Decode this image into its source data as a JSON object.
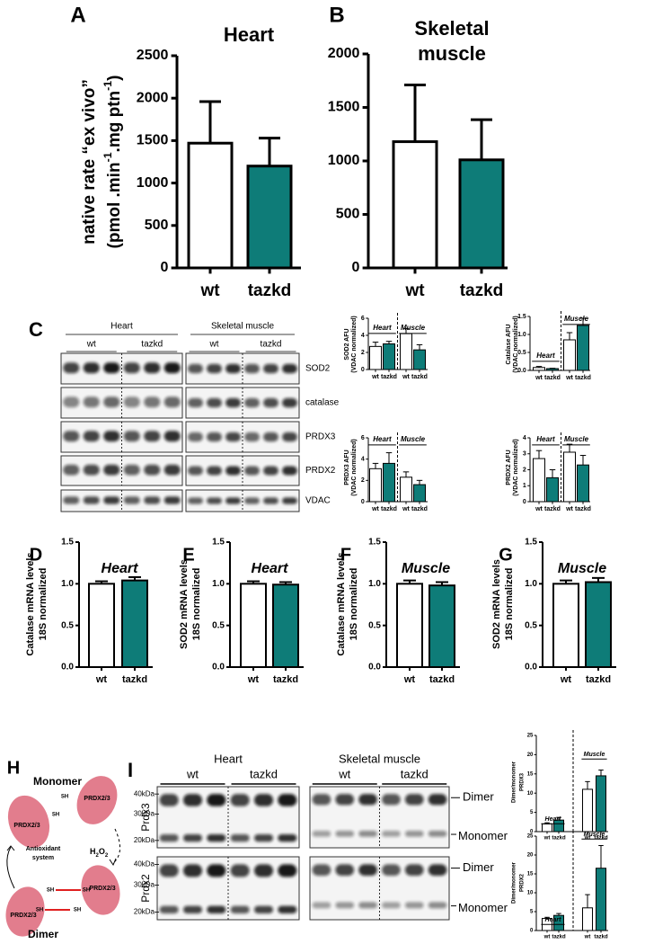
{
  "chart_data": [
    {
      "type": "bar",
      "panel": "A",
      "title": "Heart",
      "ylabel": [
        "native rate “ex vivo”",
        [
          "(pmol .min",
          "-1",
          ".mg ptn",
          "-1",
          ")"
        ]
      ],
      "categories": [
        "wt",
        "tazkd"
      ],
      "values": [
        1470,
        1200
      ],
      "errors": [
        490,
        330
      ],
      "colors": [
        "#ffffff",
        "#0e7c78"
      ],
      "ylim": [
        0,
        2500
      ],
      "yticks": [
        0,
        500,
        1000,
        1500,
        2000,
        2500
      ]
    },
    {
      "type": "bar",
      "panel": "B",
      "title": [
        "Skeletal",
        "muscle"
      ],
      "categories": [
        "wt",
        "tazkd"
      ],
      "values": [
        1180,
        1010
      ],
      "errors": [
        530,
        375
      ],
      "colors": [
        "#ffffff",
        "#0e7c78"
      ],
      "ylim": [
        0,
        2000
      ],
      "yticks": [
        0,
        500,
        1000,
        1500,
        2000
      ]
    },
    {
      "type": "bar",
      "ylabel": [
        "SOD2 AFU",
        "(VDAC normalized)"
      ],
      "groups": [
        "Heart",
        "Muscle"
      ],
      "categories": [
        "wt",
        "tazkd",
        "wt",
        "tazkd"
      ],
      "values": [
        2.7,
        3.0,
        4.2,
        2.3
      ],
      "errors": [
        0.5,
        0.3,
        0.6,
        0.6
      ],
      "colors": [
        "#ffffff",
        "#0e7c78",
        "#ffffff",
        "#0e7c78"
      ],
      "ylim": [
        0,
        6
      ],
      "yticks": [
        0,
        2,
        4,
        6
      ]
    },
    {
      "type": "bar",
      "ylabel": [
        "Catalase AFU",
        "(VDAC normalized)"
      ],
      "groups": [
        "Heart",
        "Muscle"
      ],
      "categories": [
        "wt",
        "tazkd",
        "wt",
        "tazkd"
      ],
      "values": [
        0.08,
        0.05,
        0.85,
        1.25
      ],
      "errors": [
        0.03,
        0.01,
        0.2,
        0.2
      ],
      "colors": [
        "#ffffff",
        "#0e7c78",
        "#ffffff",
        "#0e7c78"
      ],
      "ylim": [
        0,
        1.5
      ],
      "yticks": [
        {
          "value": 0,
          "label": "0.0"
        },
        0.5,
        {
          "value": 1,
          "label": "1.0"
        },
        1.5
      ]
    },
    {
      "type": "bar",
      "ylabel": [
        "PRDX3 AFU",
        "(VDAC normalized)"
      ],
      "groups": [
        "Heart",
        "Muscle"
      ],
      "categories": [
        "wt",
        "tazkd",
        "wt",
        "tazkd"
      ],
      "values": [
        3.1,
        3.6,
        2.3,
        1.6
      ],
      "errors": [
        0.5,
        1.0,
        0.5,
        0.4
      ],
      "colors": [
        "#ffffff",
        "#0e7c78",
        "#ffffff",
        "#0e7c78"
      ],
      "ylim": [
        0,
        6
      ],
      "yticks": [
        0,
        2,
        4,
        6
      ]
    },
    {
      "type": "bar",
      "ylabel": [
        "PRDX2 AFU",
        "(VDAC normalized)"
      ],
      "groups": [
        "Heart",
        "Muscle"
      ],
      "categories": [
        "wt",
        "tazkd",
        "wt",
        "tazkd"
      ],
      "values": [
        2.7,
        1.5,
        3.1,
        2.3
      ],
      "errors": [
        0.5,
        0.5,
        0.5,
        0.6
      ],
      "colors": [
        "#ffffff",
        "#0e7c78",
        "#ffffff",
        "#0e7c78"
      ],
      "ylim": [
        0,
        4
      ],
      "yticks": [
        0,
        1,
        2,
        3,
        4
      ]
    },
    {
      "type": "bar",
      "panel": "D",
      "title": "Heart",
      "ylabel": [
        "Catalase mRNA levels",
        "18S normalized"
      ],
      "categories": [
        "wt",
        "tazkd"
      ],
      "values": [
        1.0,
        1.04
      ],
      "errors": [
        0.03,
        0.04
      ],
      "colors": [
        "#ffffff",
        "#0e7c78"
      ],
      "ylim": [
        0,
        1.5
      ],
      "yticks": [
        {
          "value": 0,
          "label": "0.0"
        },
        0.5,
        {
          "value": 1,
          "label": "1.0"
        },
        1.5
      ]
    },
    {
      "type": "bar",
      "panel": "E",
      "title": "Heart",
      "ylabel": [
        "SOD2 mRNA levels",
        "18S normalized"
      ],
      "categories": [
        "wt",
        "tazkd"
      ],
      "values": [
        1.0,
        0.99
      ],
      "errors": [
        0.03,
        0.03
      ],
      "colors": [
        "#ffffff",
        "#0e7c78"
      ],
      "ylim": [
        0,
        1.5
      ],
      "yticks": [
        {
          "value": 0,
          "label": "0.0"
        },
        0.5,
        {
          "value": 1,
          "label": "1.0"
        },
        1.5
      ]
    },
    {
      "type": "bar",
      "panel": "F",
      "title": "Muscle",
      "ylabel": [
        "Catalase mRNA levels",
        "18S normalized"
      ],
      "categories": [
        "wt",
        "tazkd"
      ],
      "values": [
        1.0,
        0.98
      ],
      "errors": [
        0.04,
        0.04
      ],
      "colors": [
        "#ffffff",
        "#0e7c78"
      ],
      "ylim": [
        0,
        1.5
      ],
      "yticks": [
        {
          "value": 0,
          "label": "0.0"
        },
        0.5,
        {
          "value": 1,
          "label": "1.0"
        },
        1.5
      ]
    },
    {
      "type": "bar",
      "panel": "G",
      "title": "Muscle",
      "ylabel": [
        "SOD2 mRNA levels",
        "18S normalized"
      ],
      "categories": [
        "wt",
        "tazkd"
      ],
      "values": [
        1.0,
        1.02
      ],
      "errors": [
        0.04,
        0.05
      ],
      "colors": [
        "#ffffff",
        "#0e7c78"
      ],
      "ylim": [
        0,
        1.5
      ],
      "yticks": [
        {
          "value": 0,
          "label": "0.0"
        },
        0.5,
        {
          "value": 1,
          "label": "1.0"
        },
        1.5
      ]
    },
    {
      "type": "bar",
      "ylabel": [
        "Dimer/monomer",
        "PRDX3"
      ],
      "groups": [
        "Heart",
        "Muscle"
      ],
      "categories": [
        "wt",
        "tazkd",
        "wt",
        "tazkd"
      ],
      "values": [
        2,
        3,
        11,
        14.5
      ],
      "errors": [
        0.3,
        0.7,
        2,
        1.5
      ],
      "colors": [
        "#ffffff",
        "#0e7c78",
        "#ffffff",
        "#0e7c78"
      ],
      "ylim": [
        0,
        25
      ],
      "yticks": [
        0,
        5,
        10,
        15,
        20,
        25
      ]
    },
    {
      "type": "bar",
      "ylabel": [
        "Dimer/monomer",
        "PRDX2"
      ],
      "groups": [
        "Heart",
        "Muscle"
      ],
      "categories": [
        "wt",
        "tazkd",
        "wt",
        "tazkd"
      ],
      "values": [
        3.2,
        4,
        6,
        16.5
      ],
      "errors": [
        0.3,
        0.5,
        3.5,
        6
      ],
      "colors": [
        "#ffffff",
        "#0e7c78",
        "#ffffff",
        "#0e7c78"
      ],
      "ylim": [
        0,
        25
      ],
      "yticks": [
        0,
        5,
        10,
        15,
        20,
        25
      ]
    }
  ],
  "blots_c": {
    "panel": "C",
    "groups": [
      "Heart",
      "Skeletal muscle"
    ],
    "lanes": [
      [
        "wt",
        "tazkd"
      ],
      [
        "wt",
        "tazkd"
      ]
    ],
    "proteins": [
      "SOD2",
      "catalase",
      "PRDX3",
      "PRDX2",
      "VDAC"
    ]
  },
  "blots_i": {
    "panel": "I",
    "groups": [
      "Heart",
      "Skeletal muscle"
    ],
    "lanes": [
      [
        "wt",
        "tazkd"
      ],
      [
        "wt",
        "tazkd"
      ]
    ],
    "rows": [
      "Prdx3",
      "Prdx2"
    ],
    "markers": [
      "40kDa",
      "30kDa",
      "20kDa"
    ],
    "bands": [
      "Dimer",
      "Monomer"
    ]
  },
  "diagram": {
    "panel": "H",
    "monomer": "Monomer",
    "dimer": "Dimer",
    "protein": "PRDX2/3",
    "thiol": "SH",
    "system": [
      "Antioxidant",
      "system"
    ],
    "oxidant": [
      "H",
      "2",
      "O",
      "2"
    ]
  }
}
